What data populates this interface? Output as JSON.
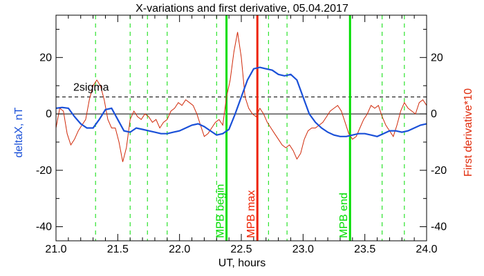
{
  "chart_data": {
    "type": "line",
    "title": "X-variations and first derivative, 05.04.2017",
    "xlabel": "UT, hours",
    "ylabel_left": "deltaX, nT",
    "ylabel_right": "First derivative*10",
    "xlim": [
      21.0,
      24.0
    ],
    "ylim": [
      -45,
      35
    ],
    "x_ticks": [
      "21.0",
      "21.5",
      "22.0",
      "22.5",
      "23.0",
      "23.5",
      "24.0"
    ],
    "y_ticks_left": [
      "-40",
      "-20",
      "0",
      "20"
    ],
    "y_ticks_right": [
      "-40",
      "-20",
      "0",
      "20"
    ],
    "grid": false,
    "colors": {
      "deltaX": "#1a50d8",
      "derivative": "#d02808",
      "green_lines": "#00dd00",
      "max_line": "#ee2200",
      "axis": "#000000"
    },
    "series": [
      {
        "label": "deltaX, nT",
        "axis": "left",
        "x": [
          21.0,
          21.05,
          21.1,
          21.15,
          21.2,
          21.25,
          21.3,
          21.35,
          21.4,
          21.45,
          21.5,
          21.55,
          21.6,
          21.65,
          21.7,
          21.75,
          21.8,
          21.85,
          21.9,
          21.95,
          22.0,
          22.05,
          22.1,
          22.15,
          22.2,
          22.25,
          22.3,
          22.35,
          22.4,
          22.45,
          22.5,
          22.55,
          22.6,
          22.65,
          22.7,
          22.75,
          22.8,
          22.85,
          22.9,
          22.95,
          23.0,
          23.05,
          23.1,
          23.15,
          23.2,
          23.25,
          23.3,
          23.35,
          23.4,
          23.45,
          23.5,
          23.55,
          23.6,
          23.65,
          23.7,
          23.75,
          23.8,
          23.85,
          23.9,
          23.95,
          24.0
        ],
        "y": [
          2.0,
          2.3,
          2.0,
          -1.0,
          -3.5,
          -5.0,
          -5.0,
          -2.0,
          1.5,
          2.0,
          -2.0,
          -6.0,
          -6.5,
          -5.0,
          -5.5,
          -6.0,
          -6.5,
          -7.0,
          -7.0,
          -6.5,
          -6.0,
          -5.0,
          -4.0,
          -3.5,
          -4.5,
          -6.0,
          -7.5,
          -7.0,
          -5.5,
          0.0,
          6.0,
          12.0,
          16.0,
          16.5,
          16.0,
          15.5,
          14.0,
          13.5,
          14.0,
          12.0,
          6.0,
          0.0,
          -3.0,
          -5.0,
          -6.5,
          -7.5,
          -8.0,
          -8.0,
          -7.5,
          -7.0,
          -7.0,
          -7.5,
          -8.0,
          -7.0,
          -6.0,
          -6.0,
          -6.5,
          -6.0,
          -5.0,
          -4.0,
          -3.5
        ]
      },
      {
        "label": "First derivative*10",
        "axis": "right",
        "x": [
          21.0,
          21.03,
          21.06,
          21.09,
          21.12,
          21.15,
          21.18,
          21.21,
          21.24,
          21.27,
          21.3,
          21.33,
          21.36,
          21.39,
          21.42,
          21.45,
          21.48,
          21.51,
          21.54,
          21.57,
          21.6,
          21.63,
          21.66,
          21.69,
          21.72,
          21.75,
          21.78,
          21.81,
          21.84,
          21.87,
          21.9,
          21.93,
          21.96,
          21.99,
          22.02,
          22.05,
          22.08,
          22.11,
          22.14,
          22.17,
          22.2,
          22.23,
          22.26,
          22.29,
          22.32,
          22.35,
          22.38,
          22.41,
          22.44,
          22.47,
          22.5,
          22.53,
          22.56,
          22.59,
          22.62,
          22.65,
          22.68,
          22.71,
          22.74,
          22.77,
          22.8,
          22.83,
          22.86,
          22.89,
          22.92,
          22.95,
          22.98,
          23.01,
          23.04,
          23.07,
          23.1,
          23.13,
          23.16,
          23.19,
          23.22,
          23.25,
          23.28,
          23.31,
          23.34,
          23.37,
          23.4,
          23.43,
          23.46,
          23.49,
          23.52,
          23.55,
          23.58,
          23.61,
          23.64,
          23.67,
          23.7,
          23.73,
          23.76,
          23.79,
          23.82,
          23.85,
          23.88,
          23.91,
          23.94,
          23.97,
          24.0
        ],
        "y": [
          -5.0,
          2.0,
          1.0,
          -7.0,
          -11.0,
          -9.0,
          -6.0,
          -4.0,
          -2.0,
          5.0,
          10.0,
          12.0,
          10.0,
          5.0,
          -2.0,
          -5.0,
          -5.0,
          -10.0,
          -17.0,
          -12.0,
          -2.0,
          1.0,
          -1.0,
          -2.0,
          0.0,
          -1.0,
          -3.0,
          -2.0,
          -5.0,
          -3.0,
          -2.0,
          1.0,
          2.0,
          4.0,
          3.0,
          5.0,
          4.0,
          3.0,
          0.0,
          -4.0,
          -8.0,
          -7.0,
          -5.0,
          -3.0,
          -2.0,
          -4.0,
          6.0,
          12.0,
          22.0,
          29.0,
          20.0,
          6.0,
          2.0,
          0.0,
          -1.0,
          2.0,
          0.0,
          -3.0,
          -5.0,
          -7.0,
          -9.0,
          -11.0,
          -12.0,
          -11.0,
          -13.0,
          -16.0,
          -14.0,
          -9.0,
          -6.0,
          -5.0,
          -5.0,
          -4.0,
          -3.0,
          -1.0,
          1.0,
          2.0,
          3.0,
          1.0,
          -3.0,
          -7.0,
          -9.0,
          -8.0,
          -5.0,
          -2.0,
          0.0,
          3.0,
          2.0,
          3.0,
          -1.0,
          -4.0,
          -6.0,
          -8.0,
          -4.0,
          1.0,
          4.0,
          2.0,
          1.0,
          0.0,
          4.0,
          5.0,
          3.0
        ]
      }
    ],
    "reference_lines": {
      "zero": 0,
      "sigma": 6.0,
      "sigma_label": "2sigma"
    },
    "dashed_vlines": [
      21.32,
      21.6,
      21.74,
      21.9,
      22.3,
      22.72,
      22.87,
      23.64,
      23.82
    ],
    "event_lines": [
      {
        "label": "MPB begin",
        "x": 22.38,
        "color": "#00dd00"
      },
      {
        "label": "MPB max",
        "x": 22.63,
        "color": "#ee2200"
      },
      {
        "label": "MPB end",
        "x": 23.38,
        "color": "#00dd00"
      }
    ]
  }
}
